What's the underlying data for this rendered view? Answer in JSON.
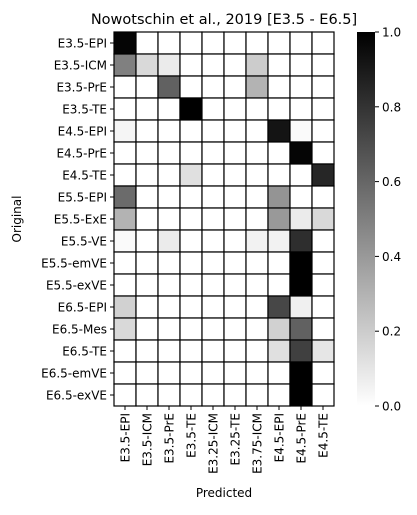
{
  "chart_data": {
    "type": "heatmap",
    "title": "Nowotschin et al., 2019 [E3.5 - E6.5]",
    "xlabel": "Predicted",
    "ylabel": "Original",
    "x_categories": [
      "E3.5-EPI",
      "E3.5-ICM",
      "E3.5-PrE",
      "E3.5-TE",
      "E3.25-ICM",
      "E3.25-TE",
      "E3.75-ICM",
      "E4.5-EPI",
      "E4.5-PrE",
      "E4.5-TE"
    ],
    "y_categories": [
      "E3.5-EPI",
      "E3.5-ICM",
      "E3.5-PrE",
      "E3.5-TE",
      "E4.5-EPI",
      "E4.5-PrE",
      "E4.5-TE",
      "E5.5-EPI",
      "E5.5-ExE",
      "E5.5-VE",
      "E5.5-emVE",
      "E5.5-exVE",
      "E6.5-EPI",
      "E6.5-Mes",
      "E6.5-TE",
      "E6.5-emVE",
      "E6.5-exVE"
    ],
    "values": [
      [
        0.98,
        0.0,
        0.0,
        0.0,
        0.0,
        0.0,
        0.0,
        0.0,
        0.0,
        0.0
      ],
      [
        0.5,
        0.15,
        0.08,
        0.0,
        0.0,
        0.0,
        0.2,
        0.0,
        0.0,
        0.0
      ],
      [
        0.0,
        0.0,
        0.62,
        0.0,
        0.0,
        0.0,
        0.3,
        0.0,
        0.0,
        0.0
      ],
      [
        0.0,
        0.0,
        0.0,
        1.0,
        0.0,
        0.0,
        0.0,
        0.0,
        0.0,
        0.0
      ],
      [
        0.04,
        0.0,
        0.0,
        0.0,
        0.0,
        0.0,
        0.0,
        0.92,
        0.02,
        0.0
      ],
      [
        0.0,
        0.0,
        0.0,
        0.0,
        0.0,
        0.0,
        0.0,
        0.0,
        0.98,
        0.0
      ],
      [
        0.0,
        0.0,
        0.0,
        0.12,
        0.0,
        0.0,
        0.0,
        0.0,
        0.0,
        0.85
      ],
      [
        0.58,
        0.0,
        0.0,
        0.0,
        0.0,
        0.0,
        0.0,
        0.42,
        0.0,
        0.0
      ],
      [
        0.3,
        0.0,
        0.0,
        0.0,
        0.0,
        0.0,
        0.0,
        0.4,
        0.08,
        0.15
      ],
      [
        0.02,
        0.0,
        0.08,
        0.0,
        0.0,
        0.0,
        0.05,
        0.05,
        0.82,
        0.0
      ],
      [
        0.0,
        0.0,
        0.0,
        0.0,
        0.0,
        0.0,
        0.0,
        0.0,
        1.0,
        0.0
      ],
      [
        0.0,
        0.0,
        0.0,
        0.0,
        0.0,
        0.0,
        0.0,
        0.0,
        1.0,
        0.0
      ],
      [
        0.18,
        0.0,
        0.0,
        0.0,
        0.0,
        0.0,
        0.0,
        0.72,
        0.06,
        0.0
      ],
      [
        0.15,
        0.0,
        0.0,
        0.0,
        0.0,
        0.0,
        0.0,
        0.18,
        0.62,
        0.0
      ],
      [
        0.0,
        0.0,
        0.0,
        0.0,
        0.0,
        0.0,
        0.0,
        0.12,
        0.75,
        0.1
      ],
      [
        0.0,
        0.0,
        0.0,
        0.0,
        0.0,
        0.0,
        0.0,
        0.0,
        1.0,
        0.0
      ],
      [
        0.0,
        0.0,
        0.0,
        0.0,
        0.0,
        0.0,
        0.0,
        0.0,
        1.0,
        0.0
      ]
    ],
    "colorbar": {
      "range": [
        0,
        1
      ],
      "ticks": [
        0.0,
        0.2,
        0.4,
        0.6,
        0.8,
        1.0
      ],
      "tick_labels": [
        "0.0",
        "0.2",
        "0.4",
        "0.6",
        "0.8",
        "1.0"
      ],
      "colors": [
        "#ffffff",
        "#000000"
      ]
    },
    "cell_border_color": "#000000"
  }
}
